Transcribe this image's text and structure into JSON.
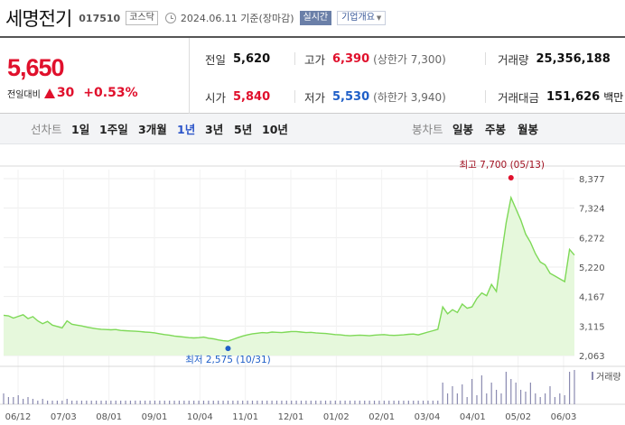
{
  "header": {
    "name": "세명전기",
    "code": "017510",
    "market": "코스닥",
    "date": "2024.06.11 기준(장마감)",
    "realtime_label": "실시간",
    "company_info_label": "기업개요"
  },
  "quote": {
    "price": "5,650",
    "change_label": "전일대비",
    "change_amount": "30",
    "change_pct": "+0.53%",
    "prev_close_label": "전일",
    "prev_close": "5,620",
    "open_label": "시가",
    "open": "5,840",
    "high_label": "고가",
    "high": "6,390",
    "upper_limit": "(상한가 7,300)",
    "low_label": "저가",
    "low": "5,530",
    "lower_limit": "(하한가 3,940)",
    "volume_label": "거래량",
    "volume": "25,356,188",
    "value_label": "거래대금",
    "value": "151,626",
    "value_unit": "백만"
  },
  "periods": {
    "line_label": "선차트",
    "line_items": [
      "1일",
      "1주일",
      "3개월",
      "1년",
      "3년",
      "5년",
      "10년"
    ],
    "selected": "1년",
    "candle_label": "봉차트",
    "candle_items": [
      "일봉",
      "주봉",
      "월봉"
    ]
  },
  "colors": {
    "up": "#e0102c",
    "down": "#1f5fc8",
    "line": "#7ed957",
    "fill": "#e6f8dc"
  },
  "chart_data": {
    "type": "area",
    "y_ticks": [
      "8,377",
      "7,324",
      "6,272",
      "5,220",
      "4,167",
      "3,115",
      "2,063"
    ],
    "ylim": [
      2063,
      8377
    ],
    "x_ticks": [
      "06/12",
      "07/03",
      "08/01",
      "09/01",
      "10/04",
      "11/01",
      "12/01",
      "01/02",
      "02/01",
      "03/04",
      "04/01",
      "05/02",
      "06/03"
    ],
    "max_annotation": "최고 7,700 (05/13)",
    "min_annotation": "최저 2,575 (10/31)",
    "volume_legend": "거래량",
    "series": [
      {
        "values": [
          3500,
          3480,
          3400,
          3460,
          3520,
          3380,
          3450,
          3300,
          3200,
          3280,
          3150,
          3100,
          3050,
          3300,
          3180,
          3150,
          3120,
          3080,
          3050,
          3020,
          3000,
          2990,
          2980,
          2990,
          2960,
          2950,
          2940,
          2930,
          2920,
          2900,
          2890,
          2870,
          2840,
          2810,
          2790,
          2760,
          2740,
          2720,
          2700,
          2690,
          2700,
          2720,
          2680,
          2660,
          2620,
          2590,
          2575,
          2640,
          2700,
          2760,
          2800,
          2840,
          2860,
          2880,
          2870,
          2900,
          2890,
          2880,
          2900,
          2920,
          2920,
          2900,
          2880,
          2890,
          2870,
          2860,
          2850,
          2830,
          2810,
          2800,
          2780,
          2770,
          2780,
          2790,
          2780,
          2770,
          2790,
          2800,
          2810,
          2790,
          2780,
          2790,
          2800,
          2820,
          2830,
          2800,
          2850,
          2900,
          2950,
          3000,
          3800,
          3550,
          3700,
          3600,
          3900,
          3750,
          3800,
          4100,
          4300,
          4200,
          4600,
          4350,
          5600,
          6800,
          7700,
          7300,
          6900,
          6400,
          6100,
          5700,
          5400,
          5300,
          5000,
          4900,
          4800,
          4700,
          5850,
          5650
        ]
      },
      {
        "values": [
          0,
          0,
          0,
          0,
          0,
          0,
          0,
          0,
          0,
          0,
          0,
          0,
          0,
          0,
          0,
          0,
          0,
          0,
          0,
          0,
          0,
          0,
          0,
          0,
          0,
          0,
          0,
          0,
          0,
          0,
          0,
          0,
          0,
          0,
          0,
          0,
          0,
          0,
          0,
          0,
          0,
          0,
          0,
          0,
          0,
          0,
          0,
          0,
          0,
          0,
          0,
          0,
          0,
          0,
          0,
          0,
          0,
          0,
          0,
          0,
          0,
          0,
          0,
          0,
          0,
          0,
          0,
          0,
          0,
          0,
          0,
          0,
          0,
          0,
          0,
          0,
          0,
          0,
          0,
          0,
          0,
          0,
          0,
          0,
          0,
          0,
          0,
          0,
          0,
          0,
          0,
          0,
          0,
          0,
          0,
          0,
          0,
          0,
          0,
          0,
          0,
          0,
          0,
          0,
          0,
          0,
          0,
          0,
          0,
          0,
          0,
          0,
          0,
          0,
          0,
          0,
          0,
          0
        ]
      }
    ],
    "volume": [
      0.3,
      0.2,
      0.2,
      0.25,
      0.15,
      0.2,
      0.15,
      0.1,
      0.15,
      0.1,
      0.1,
      0.1,
      0.1,
      0.15,
      0.1,
      0.1,
      0.1,
      0.1,
      0.1,
      0.1,
      0.1,
      0.1,
      0.1,
      0.1,
      0.1,
      0.1,
      0.1,
      0.1,
      0.1,
      0.1,
      0.1,
      0.1,
      0.1,
      0.1,
      0.1,
      0.1,
      0.1,
      0.1,
      0.1,
      0.1,
      0.1,
      0.1,
      0.1,
      0.1,
      0.1,
      0.1,
      0.1,
      0.1,
      0.1,
      0.1,
      0.1,
      0.1,
      0.1,
      0.1,
      0.1,
      0.1,
      0.1,
      0.1,
      0.1,
      0.1,
      0.1,
      0.1,
      0.1,
      0.1,
      0.1,
      0.1,
      0.1,
      0.1,
      0.1,
      0.1,
      0.1,
      0.1,
      0.1,
      0.1,
      0.1,
      0.1,
      0.1,
      0.1,
      0.1,
      0.1,
      0.1,
      0.1,
      0.1,
      0.1,
      0.1,
      0.1,
      0.1,
      0.1,
      0.1,
      0.1,
      0.6,
      0.3,
      0.5,
      0.3,
      0.55,
      0.2,
      0.7,
      0.25,
      0.8,
      0.3,
      0.6,
      0.4,
      0.3,
      0.9,
      0.7,
      0.6,
      0.4,
      0.35,
      0.6,
      0.3,
      0.2,
      0.3,
      0.5,
      0.2,
      0.3,
      0.25,
      0.9,
      0.95
    ]
  }
}
